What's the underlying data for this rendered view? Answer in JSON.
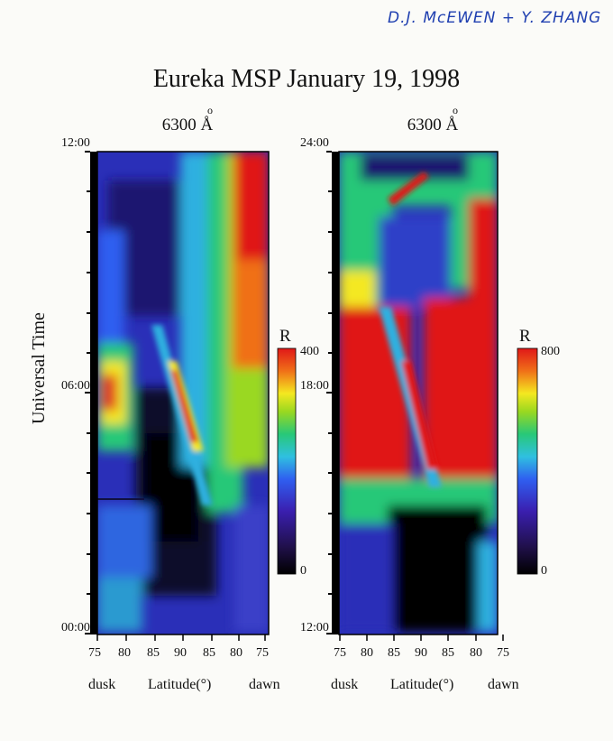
{
  "signature": "D.J. McEWEN + Y. ZHANG",
  "chart_data": {
    "type": "heatmap",
    "title": "Eureka MSP  January 19, 1998",
    "ylabel": "Universal Time",
    "xlabel_left": "dusk",
    "xlabel_center": "Latitude(°)",
    "xlabel_right": "dawn",
    "x_ticks": [
      "75",
      "80",
      "85",
      "90",
      "85",
      "80",
      "75"
    ],
    "panels": [
      {
        "name": "6300 Å",
        "wavelength": "6300",
        "unit": "Å",
        "y_ticks": [
          "12:00",
          "06:00",
          "00:00"
        ],
        "colorbar": {
          "label": "R",
          "min": 0,
          "max": 400,
          "ticks": [
            "400",
            "0"
          ]
        }
      },
      {
        "name": "6300 Å",
        "wavelength": "6300",
        "unit": "Å",
        "y_ticks": [
          "24:00",
          "18:00",
          "12:00"
        ],
        "colorbar": {
          "label": "R",
          "min": 0,
          "max": 800,
          "ticks": [
            "800",
            "0"
          ]
        }
      }
    ]
  }
}
